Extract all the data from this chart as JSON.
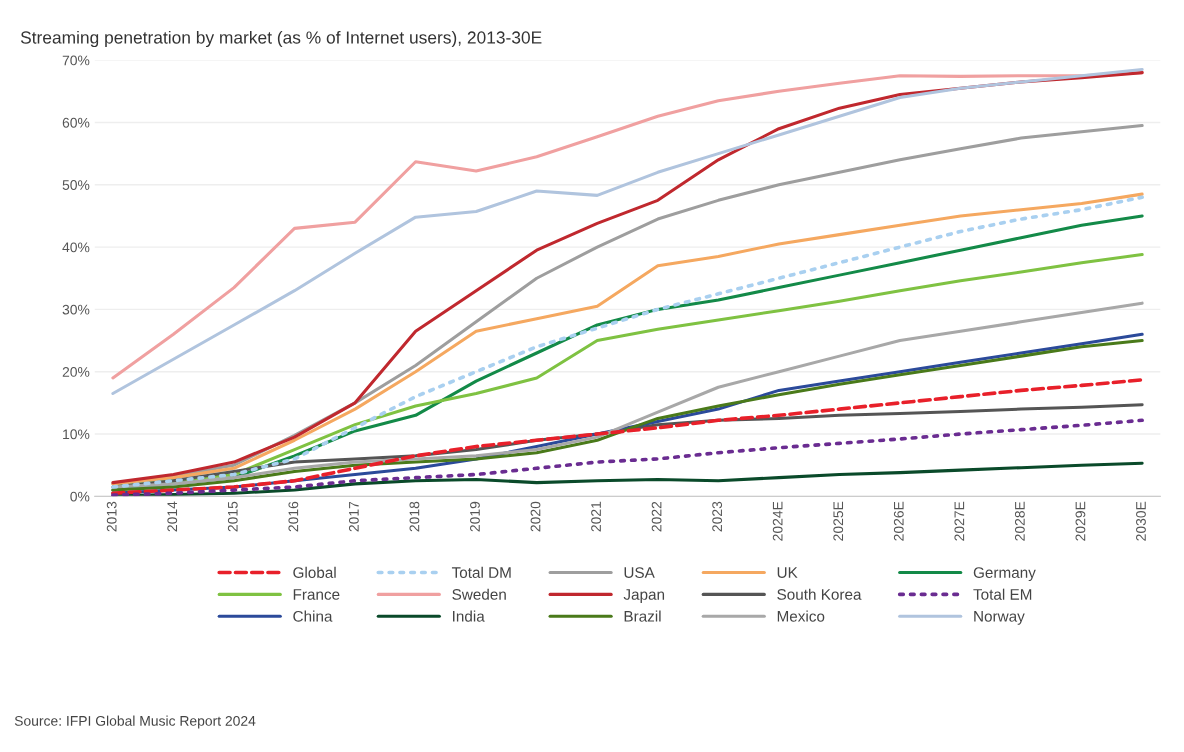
{
  "chart_data": {
    "type": "line",
    "title": "Streaming penetration by market (as % of Internet users), 2013-30E",
    "categories": [
      "2013",
      "2014",
      "2015",
      "2016",
      "2017",
      "2018",
      "2019",
      "2020",
      "2021",
      "2022",
      "2023",
      "2024E",
      "2025E",
      "2026E",
      "2027E",
      "2028E",
      "2029E",
      "2030E"
    ],
    "ylim": [
      0,
      70
    ],
    "yticks": [
      {
        "value": 0,
        "label": "0%"
      },
      {
        "value": 10,
        "label": "10%"
      },
      {
        "value": 20,
        "label": "20%"
      },
      {
        "value": 30,
        "label": "30%"
      },
      {
        "value": 40,
        "label": "40%"
      },
      {
        "value": 50,
        "label": "50%"
      },
      {
        "value": 60,
        "label": "60%"
      },
      {
        "value": 70,
        "label": "70%"
      }
    ],
    "grid": "y",
    "legend": "bottom",
    "annotations": [
      "Source: IFPI Global Music Report 2024"
    ],
    "series": [
      {
        "name": "Global",
        "color": "#e8202a",
        "line_style": "dashed",
        "values": [
          0.5,
          1,
          1.5,
          2.5,
          4.5,
          6.5,
          8,
          9,
          10,
          11,
          12.2,
          13,
          14,
          15,
          16,
          17,
          17.8,
          18.7
        ]
      },
      {
        "name": "Total DM",
        "color": "#a9d0f0",
        "line_style": "dotted",
        "values": [
          1.5,
          2.5,
          3.5,
          6,
          11,
          16,
          20,
          24,
          27,
          30,
          32.5,
          35,
          37.5,
          40,
          42.5,
          44.5,
          46,
          48
        ]
      },
      {
        "name": "USA",
        "color": "#9e9e9e",
        "values": [
          2,
          3.3,
          5,
          9.8,
          15,
          21,
          28,
          35,
          40,
          44.5,
          47.5,
          50,
          52,
          54,
          55.8,
          57.5,
          58.5,
          59.5
        ]
      },
      {
        "name": "UK",
        "color": "#f5a860",
        "values": [
          2,
          3,
          4.5,
          9,
          14,
          20,
          26.5,
          28.5,
          30.5,
          37,
          38.5,
          40.5,
          42,
          43.5,
          45,
          46,
          47,
          48.5
        ]
      },
      {
        "name": "Germany",
        "color": "#138a48",
        "values": [
          1,
          2,
          3,
          6.5,
          10.5,
          13,
          18.5,
          23,
          27.5,
          30,
          31.5,
          33.5,
          35.5,
          37.5,
          39.5,
          41.5,
          43.5,
          45
        ]
      },
      {
        "name": "France",
        "color": "#7fc242",
        "values": [
          1.5,
          2.5,
          3.5,
          7.5,
          11.5,
          14.5,
          16.5,
          19,
          25,
          26.8,
          28.3,
          29.8,
          31.3,
          33,
          34.6,
          36,
          37.5,
          38.8
        ]
      },
      {
        "name": "Sweden",
        "color": "#f0a0a0",
        "values": [
          19,
          26,
          33.5,
          43,
          44,
          53.7,
          52.2,
          54.5,
          57.7,
          61,
          63.5,
          65,
          66.3,
          67.5,
          67.4,
          67.5,
          67.5,
          68
        ]
      },
      {
        "name": "Japan",
        "color": "#c0282e",
        "values": [
          2.2,
          3.5,
          5.5,
          9.5,
          15,
          26.5,
          33,
          39.5,
          43.8,
          47.5,
          54,
          59,
          62.3,
          64.5,
          65.5,
          66.5,
          67.2,
          68
        ]
      },
      {
        "name": "South Korea",
        "color": "#555555",
        "values": [
          1.5,
          2.5,
          4,
          5.5,
          6,
          6.5,
          7.5,
          9,
          10,
          11.5,
          12.2,
          12.5,
          13,
          13.3,
          13.6,
          14,
          14.3,
          14.7
        ]
      },
      {
        "name": "Total EM",
        "color": "#6a2c91",
        "line_style": "dotted",
        "values": [
          0.2,
          0.5,
          1,
          1.5,
          2.5,
          3,
          3.5,
          4.5,
          5.5,
          6,
          7,
          7.8,
          8.5,
          9.2,
          10,
          10.7,
          11.4,
          12.2
        ]
      },
      {
        "name": "China",
        "color": "#2b4a9a",
        "values": [
          0.5,
          1,
          1.5,
          2.5,
          3.5,
          4.5,
          6,
          8,
          10,
          12,
          14,
          17,
          18.5,
          20,
          21.5,
          23,
          24.5,
          26
        ]
      },
      {
        "name": "India",
        "color": "#0a4a2a",
        "values": [
          0.1,
          0.3,
          0.5,
          1,
          2,
          2.5,
          2.7,
          2.2,
          2.5,
          2.7,
          2.5,
          3,
          3.5,
          3.8,
          4.2,
          4.6,
          5,
          5.3
        ]
      },
      {
        "name": "Brazil",
        "color": "#4a7a1a",
        "values": [
          1,
          1.5,
          2.5,
          4,
          5,
          5.5,
          6,
          7,
          9,
          12.5,
          14.5,
          16.3,
          18,
          19.5,
          21,
          22.5,
          24,
          25
        ]
      },
      {
        "name": "Mexico",
        "color": "#a8a8a8",
        "values": [
          1.5,
          2,
          3,
          4.5,
          5.5,
          6,
          6.5,
          7.5,
          9.5,
          13.5,
          17.5,
          20,
          22.5,
          25,
          26.5,
          28,
          29.5,
          31
        ]
      },
      {
        "name": "Norway",
        "color": "#b0c4de",
        "values": [
          16.5,
          22,
          27.5,
          33,
          39,
          44.8,
          45.7,
          49,
          48.3,
          52,
          55,
          58,
          61,
          64,
          65.5,
          66.5,
          67.5,
          68.5
        ]
      }
    ]
  }
}
